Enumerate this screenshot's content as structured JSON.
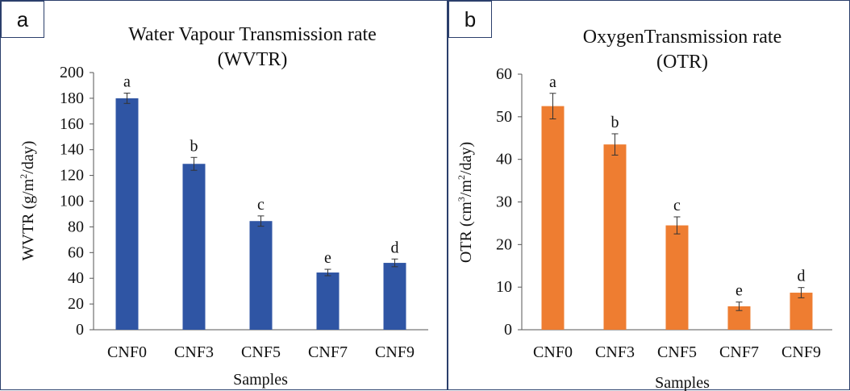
{
  "panels": [
    {
      "tag": "a",
      "chart_data": {
        "type": "bar",
        "title_line1": "Water Vapour Transmission rate",
        "title_line2": "(WVTR)",
        "xlabel": "Samples",
        "ylabel_prefix": "WVTR (g/m",
        "ylabel_sup": "2",
        "ylabel_suffix": "/day)",
        "categories": [
          "CNF0",
          "CNF3",
          "CNF5",
          "CNF7",
          "CNF9"
        ],
        "values": [
          180,
          129,
          84.5,
          44.5,
          52
        ],
        "errors": [
          4,
          5,
          4,
          2.5,
          3
        ],
        "labels": [
          "a",
          "b",
          "c",
          "e",
          "d"
        ],
        "ylim": [
          0,
          200
        ],
        "yticks": [
          0,
          20,
          40,
          60,
          80,
          100,
          120,
          140,
          160,
          180,
          200
        ],
        "color": "#2f55a4",
        "grid": false
      }
    },
    {
      "tag": "b",
      "chart_data": {
        "type": "bar",
        "title_line1": "OxygenTransmission rate",
        "title_line2": "(OTR)",
        "xlabel": "Samples",
        "ylabel_prefix": "OTR (cm",
        "ylabel_sup": "3",
        "ylabel_mid": "/m",
        "ylabel_sup2": "2",
        "ylabel_suffix": "/day)",
        "categories": [
          "CNF0",
          "CNF3",
          "CNF5",
          "CNF7",
          "CNF9"
        ],
        "values": [
          52.5,
          43.5,
          24.5,
          5.5,
          8.7
        ],
        "errors": [
          3,
          2.5,
          2,
          1,
          1.2
        ],
        "labels": [
          "a",
          "b",
          "c",
          "e",
          "d"
        ],
        "ylim": [
          0,
          60
        ],
        "yticks": [
          0,
          10,
          20,
          30,
          40,
          50,
          60
        ],
        "color": "#ee7d31",
        "grid": false
      }
    }
  ]
}
